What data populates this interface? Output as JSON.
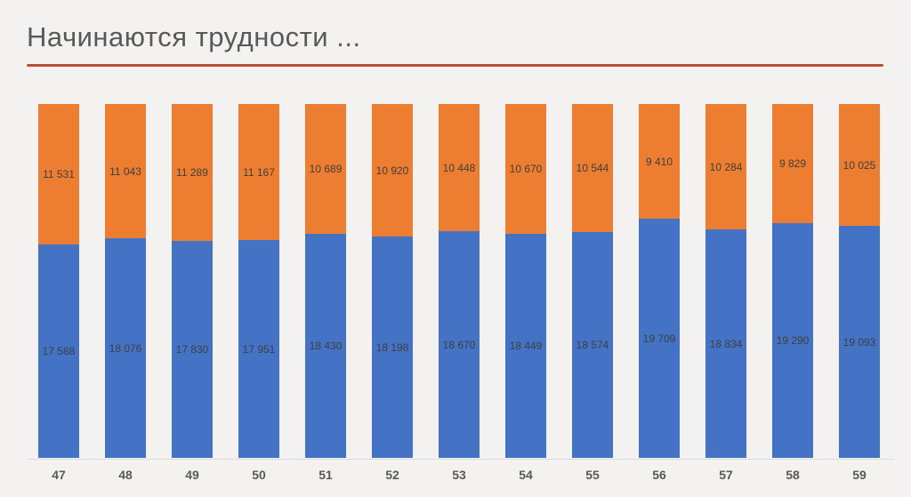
{
  "slide": {
    "title": "Начинаются трудности ...",
    "title_color": "#595959",
    "accent_line_color": "#bf4b32",
    "background_color": "#f3f2f1"
  },
  "chart_data": {
    "type": "bar",
    "stacked": true,
    "title": "",
    "xlabel": "",
    "ylabel": "",
    "legend": "none",
    "gridlines": "off",
    "categories": [
      "47",
      "48",
      "49",
      "50",
      "51",
      "52",
      "53",
      "54",
      "55",
      "56",
      "57",
      "58",
      "59"
    ],
    "series": [
      {
        "name": "blue-bottom-segment",
        "color": "#4472c4",
        "values": [
          17588,
          18076,
          17830,
          17951,
          18430,
          18198,
          18670,
          18449,
          18574,
          19709,
          18834,
          19290,
          19093
        ],
        "labels": [
          "17 588",
          "18 076",
          "17 830",
          "17 951",
          "18 430",
          "18 198",
          "18 670",
          "18 449",
          "18 574",
          "19 709",
          "18 834",
          "19 290",
          "19 093"
        ]
      },
      {
        "name": "orange-top-segment",
        "color": "#ed7d31",
        "values": [
          11531,
          11043,
          11289,
          11167,
          10689,
          10920,
          10448,
          10670,
          10544,
          9410,
          10284,
          9829,
          10025
        ],
        "labels": [
          "11 531",
          "11 043",
          "11 289",
          "11 167",
          "10 689",
          "10 920",
          "10 448",
          "10 670",
          "10 544",
          "9 410",
          "10 284",
          "9 829",
          "10 025"
        ]
      }
    ],
    "totals_per_category": [
      29119,
      29119,
      29119,
      29118,
      29119,
      29118,
      29118,
      29119,
      29118,
      29119,
      29118,
      29119,
      29118
    ],
    "ylim": [
      0,
      29119
    ],
    "value_label_color": "#3f3f3f",
    "axis_label_color": "#595959"
  }
}
